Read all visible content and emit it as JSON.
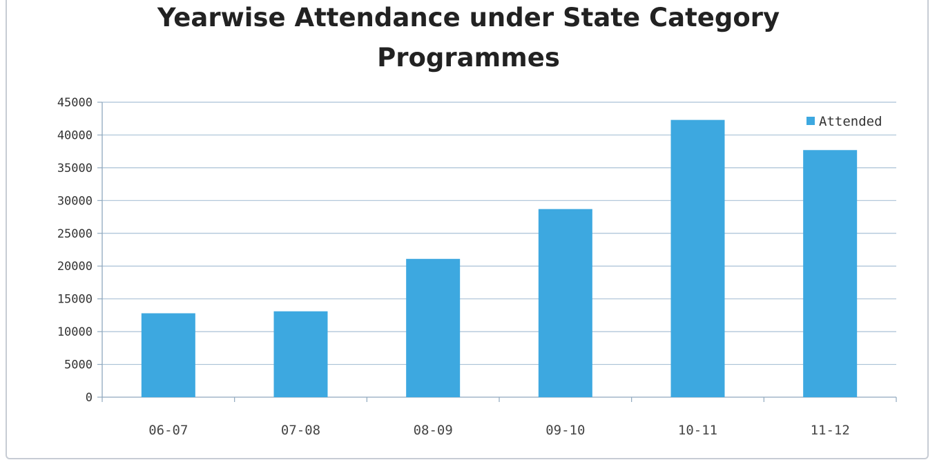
{
  "chart_data": {
    "type": "bar",
    "title": "Yearwise Attendance under State Category Programmes",
    "categories": [
      "06-07",
      "07-08",
      "08-09",
      "09-10",
      "10-11",
      "11-12"
    ],
    "series": [
      {
        "name": "Attended",
        "values": [
          12800,
          13100,
          21100,
          28700,
          42300,
          37700
        ],
        "color": "#3da8e0"
      }
    ],
    "ylim": [
      0,
      45000
    ],
    "yticks": [
      0,
      5000,
      10000,
      15000,
      20000,
      25000,
      30000,
      35000,
      40000,
      45000
    ],
    "xlabel": "",
    "ylabel": "",
    "grid": true,
    "legend_position": "right"
  }
}
